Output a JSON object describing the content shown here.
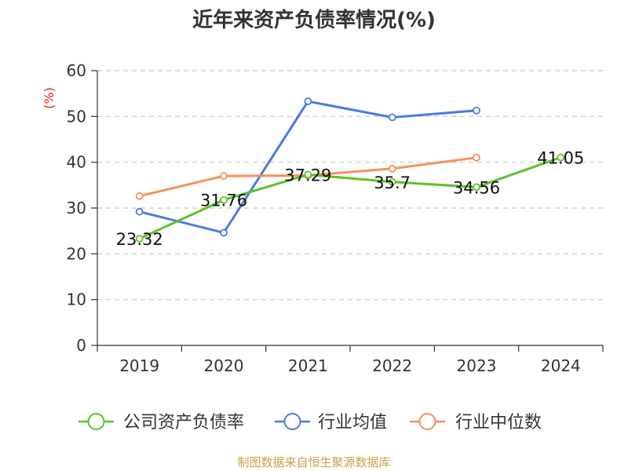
{
  "title": "近年来资产负债率情况(%)",
  "source": "制图数据来自恒生聚源数据库",
  "colors": {
    "company": "#5cc12b",
    "industry_avg": "#4a7be0",
    "industry_median": "#f5905a",
    "grid": "#c8c8c8",
    "axis": "#333333",
    "unit": "#e02020"
  },
  "chart_data": {
    "type": "line",
    "title": "近年来资产负债率情况(%)",
    "ylabel": "(%)",
    "xlabel": "",
    "ylim": [
      0,
      60
    ],
    "yticks": [
      0,
      10,
      20,
      30,
      40,
      50,
      60
    ],
    "grid": true,
    "legend": "bottom",
    "categories": [
      "2019",
      "2020",
      "2021",
      "2022",
      "2023",
      "2024"
    ],
    "series": [
      {
        "name": "公司资产负债率",
        "values": [
          23.32,
          31.76,
          37.29,
          35.7,
          34.56,
          41.05
        ],
        "labels": [
          "23.32",
          "31.76",
          "37.29",
          "35.7",
          "34.56",
          "41.05"
        ]
      },
      {
        "name": "行业均值",
        "values": [
          29.2,
          24.6,
          53.3,
          49.8,
          51.3,
          null
        ]
      },
      {
        "name": "行业中位数",
        "values": [
          32.6,
          37.0,
          37.1,
          38.6,
          41.0,
          null
        ]
      }
    ]
  }
}
